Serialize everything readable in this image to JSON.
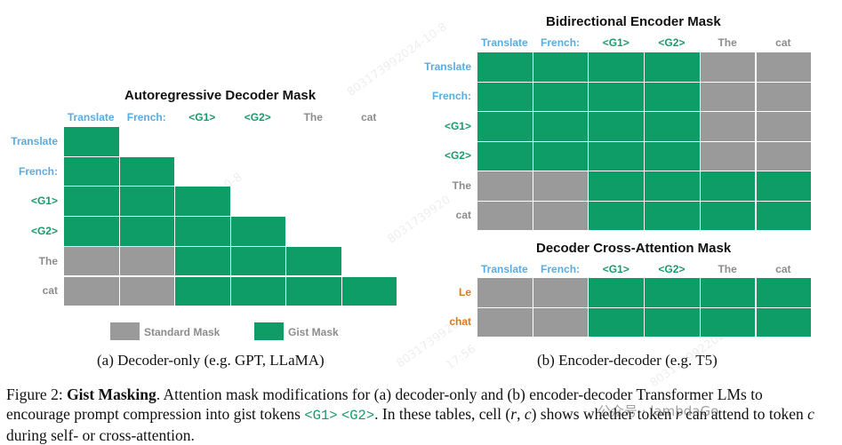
{
  "colors": {
    "gist": "#0f9d67",
    "standard": "#9a9a9a",
    "blue": "#5aace0",
    "green": "#1a9a6a",
    "gray": "#8c8c8c",
    "orange": "#e0781a"
  },
  "panel_a": {
    "title": "Autoregressive Decoder Mask",
    "col_labels": [
      {
        "text": "Translate",
        "color": "blue"
      },
      {
        "text": "French:",
        "color": "blue"
      },
      {
        "text": "<G1>",
        "color": "green"
      },
      {
        "text": "<G2>",
        "color": "green"
      },
      {
        "text": "The",
        "color": "gray"
      },
      {
        "text": "cat",
        "color": "gray"
      }
    ],
    "row_labels": [
      {
        "text": "Translate",
        "color": "blue"
      },
      {
        "text": "French:",
        "color": "blue"
      },
      {
        "text": "<G1>",
        "color": "green"
      },
      {
        "text": "<G2>",
        "color": "green"
      },
      {
        "text": "The",
        "color": "gray"
      },
      {
        "text": "cat",
        "color": "gray"
      }
    ],
    "grid": [
      [
        "G",
        "-",
        "-",
        "-",
        "-",
        "-"
      ],
      [
        "G",
        "G",
        "-",
        "-",
        "-",
        "-"
      ],
      [
        "G",
        "G",
        "G",
        "-",
        "-",
        "-"
      ],
      [
        "G",
        "G",
        "G",
        "G",
        "-",
        "-"
      ],
      [
        "S",
        "S",
        "G",
        "G",
        "G",
        "-"
      ],
      [
        "S",
        "S",
        "G",
        "G",
        "G",
        "G"
      ]
    ],
    "legend": {
      "standard": "Standard Mask",
      "gist": "Gist Mask"
    },
    "subcaption": "(a) Decoder-only (e.g. GPT, LLaMA)"
  },
  "panel_b_top": {
    "title": "Bidirectional Encoder Mask",
    "col_labels": [
      {
        "text": "Translate",
        "color": "blue"
      },
      {
        "text": "French:",
        "color": "blue"
      },
      {
        "text": "<G1>",
        "color": "green"
      },
      {
        "text": "<G2>",
        "color": "green"
      },
      {
        "text": "The",
        "color": "gray"
      },
      {
        "text": "cat",
        "color": "gray"
      }
    ],
    "row_labels": [
      {
        "text": "Translate",
        "color": "blue"
      },
      {
        "text": "French:",
        "color": "blue"
      },
      {
        "text": "<G1>",
        "color": "green"
      },
      {
        "text": "<G2>",
        "color": "green"
      },
      {
        "text": "The",
        "color": "gray"
      },
      {
        "text": "cat",
        "color": "gray"
      }
    ],
    "grid": [
      [
        "G",
        "G",
        "G",
        "G",
        "S",
        "S"
      ],
      [
        "G",
        "G",
        "G",
        "G",
        "S",
        "S"
      ],
      [
        "G",
        "G",
        "G",
        "G",
        "S",
        "S"
      ],
      [
        "G",
        "G",
        "G",
        "G",
        "S",
        "S"
      ],
      [
        "S",
        "S",
        "G",
        "G",
        "G",
        "G"
      ],
      [
        "S",
        "S",
        "G",
        "G",
        "G",
        "G"
      ]
    ]
  },
  "panel_b_bottom": {
    "title": "Decoder Cross-Attention Mask",
    "col_labels": [
      {
        "text": "Translate",
        "color": "blue"
      },
      {
        "text": "French:",
        "color": "blue"
      },
      {
        "text": "<G1>",
        "color": "green"
      },
      {
        "text": "<G2>",
        "color": "green"
      },
      {
        "text": "The",
        "color": "gray"
      },
      {
        "text": "cat",
        "color": "gray"
      }
    ],
    "row_labels": [
      {
        "text": "Le",
        "color": "orange"
      },
      {
        "text": "chat",
        "color": "orange"
      }
    ],
    "grid": [
      [
        "S",
        "S",
        "G",
        "G",
        "G",
        "G"
      ],
      [
        "S",
        "S",
        "G",
        "G",
        "G",
        "G"
      ]
    ],
    "subcaption": "(b) Encoder-decoder (e.g. T5)"
  },
  "caption": {
    "figure_label": "Figure 2:",
    "heading": "Gist Masking",
    "text1": ". Attention mask modifications for (a) decoder-only and (b) encoder-decoder Transformer LMs to encourage prompt compression into gist tokens ",
    "token1": "<G1>",
    "token2": "<G2>",
    "text2": ". In these tables, cell (",
    "var_r": "r",
    "sep": ", ",
    "var_c": "c",
    "text3": ") shows whether token ",
    "var_r2": "r",
    "text4": " can attend to token ",
    "var_c2": "c",
    "text5": " during self- or cross-attention."
  },
  "watermark": {
    "badge": "公众号 · lambdaGo",
    "marks": [
      "8031739920",
      "2024-10-8",
      "17:56",
      "8031739922024-10-8",
      "803173992024-10-8"
    ]
  }
}
